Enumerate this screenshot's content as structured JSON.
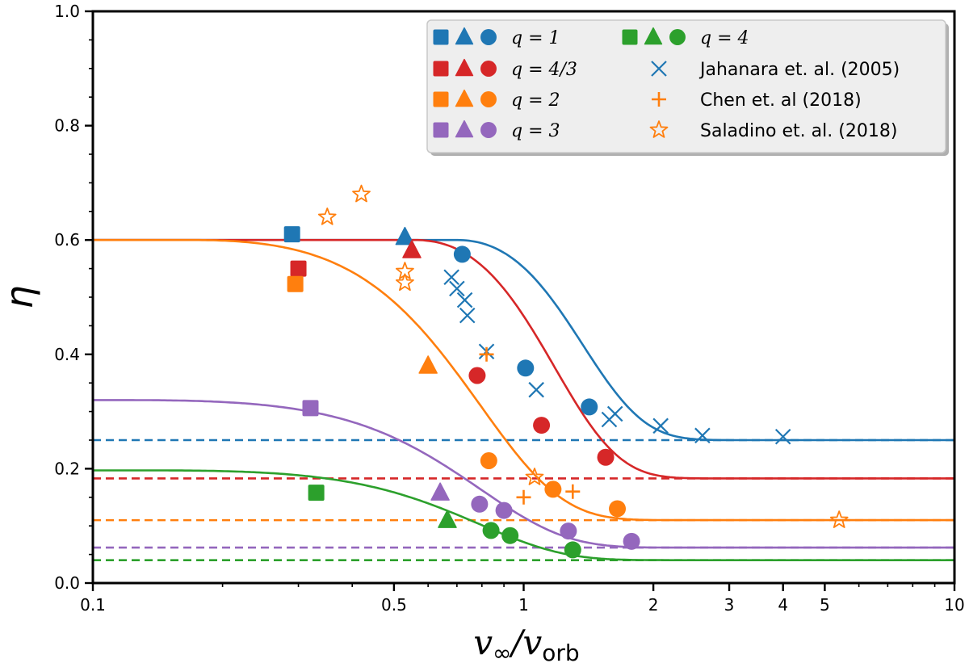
{
  "chart_data": {
    "type": "scatter",
    "xscale": "log",
    "xlim": [
      0.1,
      10
    ],
    "ylim": [
      0.0,
      1.0
    ],
    "xlabel_main": "v",
    "xlabel_sub1": "∞",
    "xlabel_mid": "/v",
    "xlabel_sub2": "orb",
    "ylabel": "η",
    "xticks": [
      {
        "value": 0.1,
        "label": "0.1"
      },
      {
        "value": 0.5,
        "label": "0.5"
      },
      {
        "value": 1,
        "label": "1"
      },
      {
        "value": 2,
        "label": "2"
      },
      {
        "value": 3,
        "label": "3"
      },
      {
        "value": 4,
        "label": "4"
      },
      {
        "value": 5,
        "label": "5"
      },
      {
        "value": 10,
        "label": "10"
      }
    ],
    "yticks": [
      {
        "value": 0.0,
        "label": "0.0"
      },
      {
        "value": 0.2,
        "label": "0.2"
      },
      {
        "value": 0.4,
        "label": "0.4"
      },
      {
        "value": 0.6,
        "label": "0.6"
      },
      {
        "value": 0.8,
        "label": "0.8"
      },
      {
        "value": 1.0,
        "label": "1.0"
      }
    ],
    "series": [
      {
        "name": "q = 1",
        "color": "#1f77b4",
        "asymptote": 0.25,
        "plateau": 0.6,
        "kink": 0.7,
        "width": 0.78,
        "squares": [
          [
            0.29,
            0.61
          ]
        ],
        "triangles": [
          [
            0.53,
            0.605
          ]
        ],
        "circles": [
          [
            0.72,
            0.575
          ],
          [
            1.01,
            0.376
          ],
          [
            1.42,
            0.308
          ]
        ]
      },
      {
        "name": "q = 4/3",
        "color": "#d62728",
        "asymptote": 0.183,
        "plateau": 0.6,
        "kink": 0.56,
        "width": 0.71,
        "squares": [
          [
            0.3,
            0.55
          ]
        ],
        "triangles": [
          [
            0.55,
            0.582
          ]
        ],
        "circles": [
          [
            0.78,
            0.363
          ],
          [
            1.1,
            0.276
          ],
          [
            1.55,
            0.22
          ]
        ]
      },
      {
        "name": "q = 2",
        "color": "#ff7f0e",
        "asymptote": 0.11,
        "plateau": 0.6,
        "kink": 0.17,
        "width": 0.66,
        "squares": [
          [
            0.295,
            0.523
          ]
        ],
        "triangles": [
          [
            0.6,
            0.38
          ]
        ],
        "circles": [
          [
            0.83,
            0.214
          ],
          [
            1.17,
            0.164
          ],
          [
            1.65,
            0.13
          ]
        ]
      },
      {
        "name": "q = 3",
        "color": "#9467bd",
        "asymptote": 0.062,
        "plateau": 0.32,
        "kink": 0.12,
        "width": 0.7,
        "squares": [
          [
            0.32,
            0.306
          ]
        ],
        "triangles": [
          [
            0.64,
            0.158
          ]
        ],
        "circles": [
          [
            0.79,
            0.138
          ],
          [
            0.9,
            0.127
          ],
          [
            1.27,
            0.091
          ],
          [
            1.78,
            0.073
          ]
        ]
      },
      {
        "name": "q = 4",
        "color": "#2ca02c",
        "asymptote": 0.04,
        "plateau": 0.197,
        "kink": 0.14,
        "width": 0.68,
        "squares": [
          [
            0.33,
            0.158
          ]
        ],
        "triangles": [
          [
            0.665,
            0.11
          ]
        ],
        "circles": [
          [
            0.84,
            0.092
          ],
          [
            0.93,
            0.083
          ],
          [
            1.3,
            0.058
          ]
        ]
      }
    ],
    "reference_sets": [
      {
        "name": "Jahanara et. al. (2005)",
        "marker": "x",
        "color": "#1f77b4",
        "points": [
          [
            0.68,
            0.535
          ],
          [
            0.7,
            0.515
          ],
          [
            0.73,
            0.495
          ],
          [
            0.74,
            0.468
          ],
          [
            0.82,
            0.405
          ],
          [
            1.07,
            0.338
          ],
          [
            1.58,
            0.286
          ],
          [
            1.63,
            0.296
          ],
          [
            2.08,
            0.275
          ],
          [
            2.6,
            0.258
          ],
          [
            4.0,
            0.256
          ]
        ]
      },
      {
        "name": "Chen et. al (2018)",
        "marker": "+",
        "color": "#ff7f0e",
        "points": [
          [
            0.82,
            0.4
          ],
          [
            1.0,
            0.15
          ],
          [
            1.3,
            0.16
          ]
        ]
      },
      {
        "name": "Saladino et. al. (2018)",
        "marker": "star",
        "color": "#ff7f0e",
        "points": [
          [
            0.35,
            0.64
          ],
          [
            0.42,
            0.68
          ],
          [
            0.53,
            0.545
          ],
          [
            0.53,
            0.525
          ],
          [
            1.06,
            0.185
          ],
          [
            5.4,
            0.11
          ]
        ]
      }
    ],
    "legend": {
      "placement": "top-right",
      "q_entries": [
        {
          "label": "q = 1",
          "series": 0
        },
        {
          "label": "q = 4/3",
          "series": 1
        },
        {
          "label": "q = 2",
          "series": 2
        },
        {
          "label": "q = 3",
          "series": 3
        },
        {
          "label": "q = 4",
          "series": 4
        }
      ]
    }
  }
}
